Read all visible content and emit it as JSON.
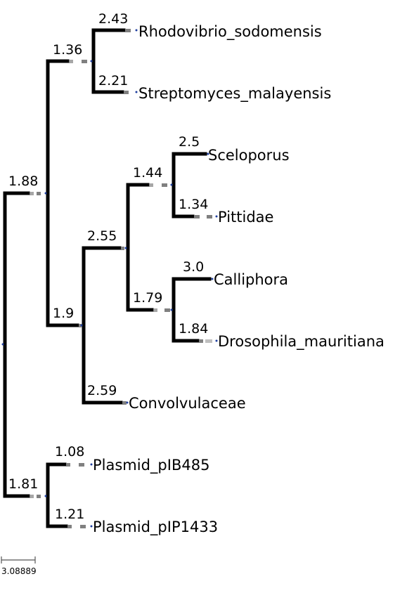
{
  "tree": {
    "support_values": {
      "root_upper": "1.88",
      "root_lower": "1.81",
      "clade_bacteria": "1.36",
      "clade_mixed": "1.9",
      "clade_animals": "2.55",
      "clade_sauria": "1.44",
      "clade_flies": "1.79",
      "leaf_rhodovibrio": "2.43",
      "leaf_streptomyces": "2.21",
      "leaf_sceloporus": "2.5",
      "leaf_pittidae": "1.34",
      "leaf_calliphora": "3.0",
      "leaf_drosophila": "1.84",
      "leaf_convolvulaceae": "2.59",
      "leaf_pib485": "1.08",
      "leaf_pip1433": "1.21"
    },
    "leaves": {
      "rhodovibrio": "Rhodovibrio_sodomensis",
      "streptomyces": "Streptomyces_malayensis",
      "sceloporus": "Sceloporus",
      "pittidae": "Pittidae",
      "calliphora": "Calliphora",
      "drosophila": "Drosophila_mauritiana",
      "convolvulaceae": "Convolvulaceae",
      "pib485": "Plasmid_pIB485",
      "pip1433": "Plasmid_pIP1433"
    }
  },
  "scale_bar": {
    "label": "3.08889"
  },
  "colors": {
    "branch": "#000000",
    "dash": "#808080",
    "node_dot": "#1f3f9f"
  }
}
